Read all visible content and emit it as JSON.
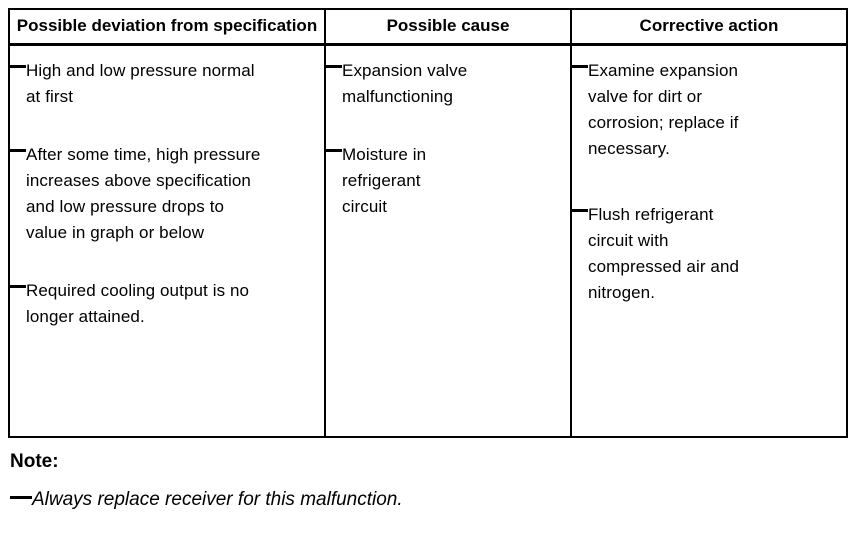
{
  "colors": {
    "background": "#ffffff",
    "border": "#000000",
    "text": "#000000"
  },
  "table": {
    "columns": [
      {
        "header": "Possible deviation from specification",
        "items": [
          "High and low pressure normal at first",
          "After some time, high pressure increases above specification and low pressure drops to value in graph or below",
          "Required cooling output is no longer attained."
        ]
      },
      {
        "header": "Possible cause",
        "items": [
          "Expansion valve malfunctioning",
          "Moisture in refrigerant circuit"
        ]
      },
      {
        "header": "Corrective action",
        "items": [
          "Examine expansion valve for dirt or corrosion; replace if necessary.",
          "Flush refrigerant circuit with compressed air and nitrogen."
        ]
      }
    ]
  },
  "note": {
    "label": "Note:",
    "items": [
      "Always replace receiver for this malfunction."
    ]
  }
}
